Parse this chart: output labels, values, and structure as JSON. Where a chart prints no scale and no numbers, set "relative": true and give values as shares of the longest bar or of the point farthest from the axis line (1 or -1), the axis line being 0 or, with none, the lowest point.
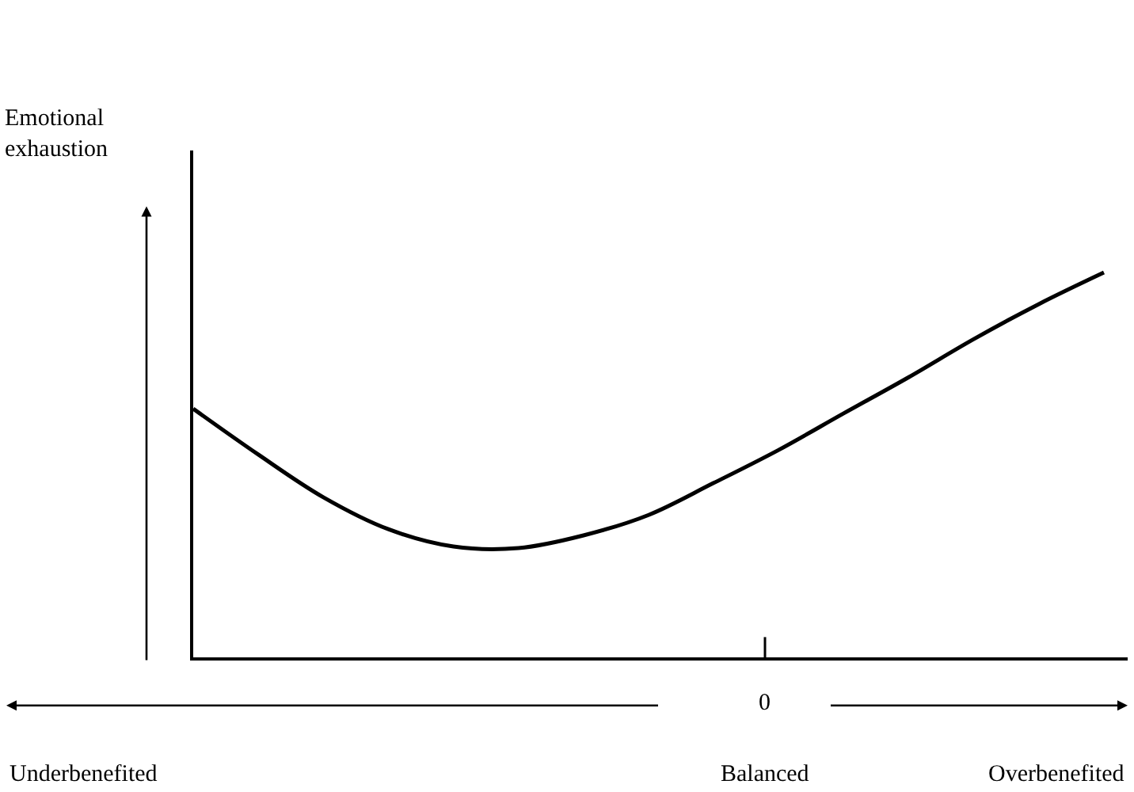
{
  "chart_data": {
    "type": "line",
    "relative": true,
    "categories": [
      null,
      null,
      null,
      null,
      null,
      null,
      null,
      null,
      null,
      null,
      null,
      null,
      null,
      null,
      null
    ],
    "series": [
      {
        "color": "#000000",
        "values": [
          0.646,
          0.527,
          0.416,
          0.333,
          0.288,
          0.284,
          0.317,
          0.37,
          0.453,
          0.539,
          0.634,
          0.728,
          0.827,
          0.918,
          1
        ]
      }
    ],
    "annotations": [
      "Emotional exhaustion",
      "0",
      "Underbenefited",
      "Balanced",
      "Overbenefited"
    ],
    "marker": "none",
    "line_style": "solid",
    "legend": false
  }
}
